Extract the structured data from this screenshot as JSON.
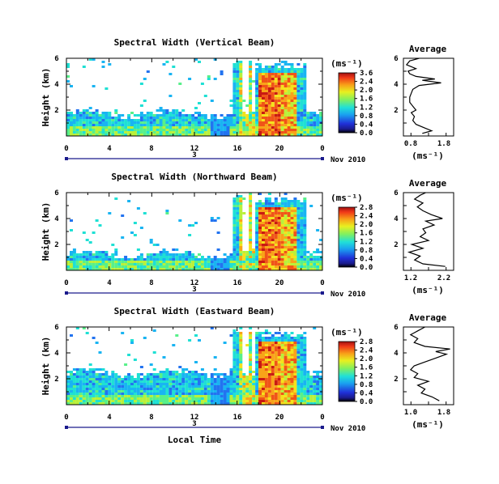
{
  "chart_data": [
    {
      "type": "heatmap",
      "title": "Spectral Width (Vertical Beam)",
      "ylabel": "Height (km)",
      "xlabel": "",
      "x_ticks": [
        "0",
        "4",
        "8",
        "12",
        "16",
        "20",
        "0"
      ],
      "y_ticks": [
        "6",
        "4",
        "2"
      ],
      "date_day": "3",
      "date_label": "Nov 2010",
      "colorbar": {
        "unit": "(ms⁻¹)",
        "ticks": [
          "3.6",
          "2.4",
          "2.0",
          "1.6",
          "1.2",
          "0.8",
          "0.4",
          "0.0"
        ]
      },
      "average": {
        "title": "Average",
        "x_ticks": [
          "0.8",
          "1.8"
        ],
        "xlim": [
          0.4,
          2.0
        ],
        "ylim": [
          0,
          6
        ],
        "y_ticks": [
          "6",
          "4",
          "2"
        ],
        "xlabel": "(ms⁻¹)",
        "profile": [
          [
            1.0,
            0.2
          ],
          [
            1.3,
            0.4
          ],
          [
            1.1,
            0.6
          ],
          [
            0.8,
            0.9
          ],
          [
            0.7,
            1.2
          ],
          [
            0.75,
            1.5
          ],
          [
            0.65,
            1.8
          ],
          [
            0.8,
            2.0
          ],
          [
            0.7,
            2.3
          ],
          [
            0.6,
            2.6
          ],
          [
            0.6,
            3.0
          ],
          [
            0.65,
            3.3
          ],
          [
            0.7,
            3.6
          ],
          [
            0.9,
            3.9
          ],
          [
            1.6,
            4.1
          ],
          [
            1.0,
            4.3
          ],
          [
            1.4,
            4.4
          ],
          [
            0.8,
            4.6
          ],
          [
            0.6,
            4.8
          ],
          [
            0.55,
            5.0
          ],
          [
            0.8,
            5.2
          ],
          [
            0.5,
            5.5
          ],
          [
            0.6,
            5.8
          ],
          [
            0.9,
            6.0
          ]
        ]
      }
    },
    {
      "type": "heatmap",
      "title": "Spectral Width (Northward Beam)",
      "ylabel": "Height (km)",
      "xlabel": "",
      "x_ticks": [
        "0",
        "4",
        "8",
        "12",
        "16",
        "20",
        "0"
      ],
      "y_ticks": [
        "6",
        "4",
        "2"
      ],
      "date_day": "3",
      "date_label": "Nov 2010",
      "colorbar": {
        "unit": "(ms⁻¹)",
        "ticks": [
          "2.8",
          "2.4",
          "2.0",
          "1.6",
          "1.2",
          "0.8",
          "0.4",
          "0.0"
        ]
      },
      "average": {
        "title": "Average",
        "x_ticks": [
          "1.2",
          "2.2"
        ],
        "xlim": [
          0.8,
          2.6
        ],
        "ylim": [
          0,
          6
        ],
        "y_ticks": [
          "6",
          "4",
          "2"
        ],
        "xlabel": "(ms⁻¹)",
        "profile": [
          [
            2.3,
            0.3
          ],
          [
            1.5,
            0.5
          ],
          [
            1.2,
            0.8
          ],
          [
            1.4,
            1.1
          ],
          [
            1.0,
            1.4
          ],
          [
            1.5,
            1.7
          ],
          [
            1.1,
            2.0
          ],
          [
            1.7,
            2.3
          ],
          [
            1.4,
            2.6
          ],
          [
            1.6,
            2.9
          ],
          [
            1.5,
            3.2
          ],
          [
            1.9,
            3.5
          ],
          [
            1.6,
            3.8
          ],
          [
            2.2,
            4.0
          ],
          [
            1.8,
            4.3
          ],
          [
            1.5,
            4.6
          ],
          [
            1.3,
            4.9
          ],
          [
            1.5,
            5.2
          ],
          [
            1.2,
            5.5
          ],
          [
            1.4,
            5.8
          ],
          [
            1.6,
            6.0
          ]
        ]
      }
    },
    {
      "type": "heatmap",
      "title": "Spectral Width (Eastward Beam)",
      "ylabel": "Height (km)",
      "xlabel": "Local Time",
      "x_ticks": [
        "0",
        "4",
        "8",
        "12",
        "16",
        "20",
        "0"
      ],
      "y_ticks": [
        "6",
        "4",
        "2"
      ],
      "date_day": "3",
      "date_label": "Nov 2010",
      "colorbar": {
        "unit": "(ms⁻¹)",
        "ticks": [
          "2.8",
          "2.4",
          "2.0",
          "1.6",
          "1.2",
          "0.8",
          "0.4",
          "0.0"
        ]
      },
      "average": {
        "title": "Average",
        "x_ticks": [
          "1.0",
          "1.8"
        ],
        "xlim": [
          0.6,
          2.0
        ],
        "ylim": [
          0,
          6
        ],
        "y_ticks": [
          "6",
          "4",
          "2"
        ],
        "xlabel": "(ms⁻¹)",
        "profile": [
          [
            1.6,
            0.3
          ],
          [
            1.4,
            0.6
          ],
          [
            1.1,
            0.9
          ],
          [
            1.2,
            1.2
          ],
          [
            1.0,
            1.5
          ],
          [
            1.3,
            1.8
          ],
          [
            0.9,
            2.1
          ],
          [
            1.0,
            2.4
          ],
          [
            0.8,
            2.7
          ],
          [
            0.9,
            3.0
          ],
          [
            1.2,
            3.3
          ],
          [
            1.5,
            3.6
          ],
          [
            1.8,
            3.9
          ],
          [
            1.5,
            4.1
          ],
          [
            1.9,
            4.3
          ],
          [
            1.2,
            4.5
          ],
          [
            0.9,
            4.8
          ],
          [
            1.0,
            5.1
          ],
          [
            0.8,
            5.4
          ],
          [
            1.0,
            5.7
          ],
          [
            1.2,
            6.0
          ]
        ]
      }
    }
  ]
}
